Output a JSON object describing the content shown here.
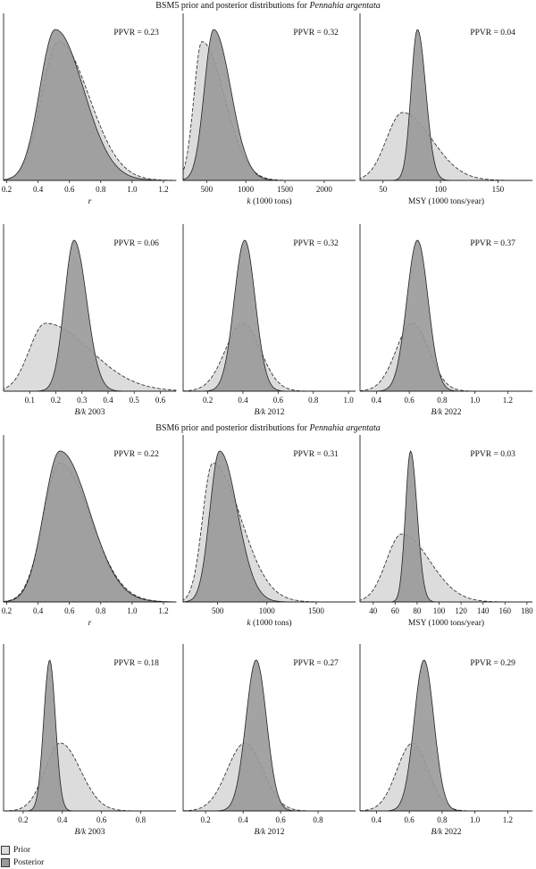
{
  "figure": {
    "section1_title_prefix": "BSM5 prior and posterior distributions for ",
    "section1_title_species": "Pennahia argentata",
    "section2_title_prefix": "BSM6 prior and posterior distributions for ",
    "section2_title_species": "Pennahia argentata"
  },
  "legend": {
    "prior_label": "Prior",
    "posterior_label": "Posterior",
    "prior_color": "#dcdcdc",
    "posterior_color": "#999999"
  },
  "chart_data": [
    {
      "type": "area",
      "section": "BSM5",
      "xlabel": "r",
      "ppvr": "PPVR = 0.23",
      "xlim": [
        0.18,
        1.28
      ],
      "ticks": [
        "0.2",
        "0.4",
        "0.6",
        "0.8",
        "1.0",
        "1.2"
      ],
      "series": [
        {
          "name": "Prior",
          "mean": 0.53,
          "sd": 0.13,
          "skew": 0.5
        },
        {
          "name": "Posterior",
          "mean": 0.51,
          "sd": 0.12,
          "skew": 0.5
        }
      ]
    },
    {
      "type": "area",
      "section": "BSM5",
      "xlabel": "k (1000 tons)",
      "ppvr": "PPVR = 0.32",
      "xlim": [
        200,
        2400
      ],
      "ticks": [
        "500",
        "1000",
        "1500",
        "2000"
      ],
      "series": [
        {
          "name": "Prior",
          "mean": 440,
          "sd": 150,
          "skew": 0.9
        },
        {
          "name": "Posterior",
          "mean": 590,
          "sd": 145,
          "skew": 0.5
        }
      ]
    },
    {
      "type": "area",
      "section": "BSM5",
      "xlabel": "MSY (1000 tons/year)",
      "ppvr": "PPVR = 0.04",
      "xlim": [
        30,
        180
      ],
      "ticks": [
        "50",
        "100",
        "150"
      ],
      "series": [
        {
          "name": "Prior",
          "mean": 67,
          "sd": 17,
          "skew": 0.5
        },
        {
          "name": "Posterior",
          "mean": 80,
          "sd": 6,
          "skew": 0.2
        }
      ]
    },
    {
      "type": "area",
      "section": "BSM5",
      "xlabel": "B/k 2003",
      "ppvr": "PPVR = 0.06",
      "xlim": [
        0.0,
        0.66
      ],
      "ticks": [
        "0.1",
        "0.2",
        "0.3",
        "0.4",
        "0.5",
        "0.6"
      ],
      "series": [
        {
          "name": "Prior",
          "mean": 0.16,
          "sd": 0.09,
          "skew": 0.9
        },
        {
          "name": "Posterior",
          "mean": 0.27,
          "sd": 0.04,
          "skew": 0.2
        }
      ]
    },
    {
      "type": "area",
      "section": "BSM5",
      "xlabel": "B/k 2012",
      "ppvr": "PPVR = 0.32",
      "xlim": [
        0.06,
        1.04
      ],
      "ticks": [
        "0.2",
        "0.4",
        "0.6",
        "0.8",
        "1.0"
      ],
      "series": [
        {
          "name": "Prior",
          "mean": 0.4,
          "sd": 0.1,
          "skew": 0.0
        },
        {
          "name": "Posterior",
          "mean": 0.41,
          "sd": 0.06,
          "skew": 0.0
        }
      ]
    },
    {
      "type": "area",
      "section": "BSM5",
      "xlabel": "B/k 2022",
      "ppvr": "PPVR = 0.37",
      "xlim": [
        0.3,
        1.35
      ],
      "ticks": [
        "0.4",
        "0.6",
        "0.8",
        "1.0",
        "1.2"
      ],
      "series": [
        {
          "name": "Prior",
          "mean": 0.62,
          "sd": 0.1,
          "skew": 0.0
        },
        {
          "name": "Posterior",
          "mean": 0.65,
          "sd": 0.065,
          "skew": 0.0
        }
      ]
    },
    {
      "type": "area",
      "section": "BSM6",
      "xlabel": "r",
      "ppvr": "PPVR = 0.22",
      "xlim": [
        0.18,
        1.28
      ],
      "ticks": [
        "0.2",
        "0.4",
        "0.6",
        "0.8",
        "1.0",
        "1.2"
      ],
      "series": [
        {
          "name": "Prior",
          "mean": 0.54,
          "sd": 0.13,
          "skew": 0.5
        },
        {
          "name": "Posterior",
          "mean": 0.54,
          "sd": 0.125,
          "skew": 0.5
        }
      ]
    },
    {
      "type": "area",
      "section": "BSM6",
      "xlabel": "k (1000 tons)",
      "ppvr": "PPVR = 0.31",
      "xlim": [
        150,
        1900
      ],
      "ticks": [
        "500",
        "1000",
        "1500"
      ],
      "series": [
        {
          "name": "Prior",
          "mean": 450,
          "sd": 150,
          "skew": 0.9
        },
        {
          "name": "Posterior",
          "mean": 520,
          "sd": 120,
          "skew": 0.5
        }
      ]
    },
    {
      "type": "area",
      "section": "BSM6",
      "xlabel": "MSY (1000 tons/year)",
      "ppvr": "PPVR = 0.03",
      "xlim": [
        28,
        185
      ],
      "ticks": [
        "40",
        "60",
        "80",
        "100",
        "120",
        "140",
        "160",
        "180"
      ],
      "series": [
        {
          "name": "Prior",
          "mean": 66,
          "sd": 17,
          "skew": 0.5
        },
        {
          "name": "Posterior",
          "mean": 74,
          "sd": 5,
          "skew": 0.2
        }
      ]
    },
    {
      "type": "area",
      "section": "BSM6",
      "xlabel": "B/k 2003",
      "ppvr": "PPVR = 0.18",
      "xlim": [
        0.1,
        0.98
      ],
      "ticks": [
        "0.2",
        "0.4",
        "0.6",
        "0.8"
      ],
      "series": [
        {
          "name": "Prior",
          "mean": 0.39,
          "sd": 0.085,
          "skew": 0.2
        },
        {
          "name": "Posterior",
          "mean": 0.335,
          "sd": 0.03,
          "skew": 0.0
        }
      ]
    },
    {
      "type": "area",
      "section": "BSM6",
      "xlabel": "B/k 2012",
      "ppvr": "PPVR = 0.27",
      "xlim": [
        0.08,
        1.0
      ],
      "ticks": [
        "0.2",
        "0.4",
        "0.6",
        "0.8"
      ],
      "series": [
        {
          "name": "Prior",
          "mean": 0.41,
          "sd": 0.095,
          "skew": 0.0
        },
        {
          "name": "Posterior",
          "mean": 0.47,
          "sd": 0.055,
          "skew": 0.0
        }
      ]
    },
    {
      "type": "area",
      "section": "BSM6",
      "xlabel": "B/k 2022",
      "ppvr": "PPVR = 0.29",
      "xlim": [
        0.3,
        1.35
      ],
      "ticks": [
        "0.4",
        "0.6",
        "0.8",
        "1.0",
        "1.2"
      ],
      "series": [
        {
          "name": "Prior",
          "mean": 0.62,
          "sd": 0.095,
          "skew": 0.0
        },
        {
          "name": "Posterior",
          "mean": 0.69,
          "sd": 0.06,
          "skew": 0.0
        }
      ]
    }
  ]
}
